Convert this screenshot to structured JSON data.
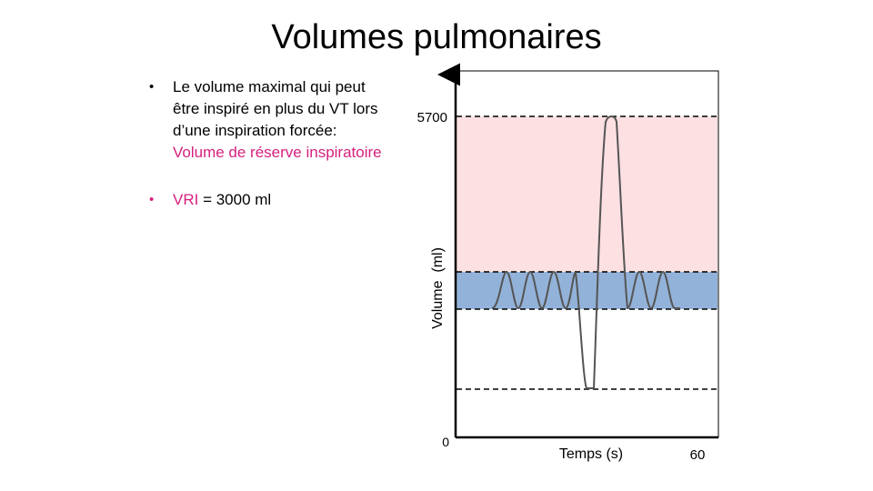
{
  "title": "Volumes pulmonaires",
  "bullets": [
    {
      "text": "Le volume maximal qui peut être inspiré en plus du VT lors d’une inspiration forcée: ",
      "highlight": "Volume de réserve inspiratoire"
    },
    {
      "highlight": "VRI",
      "text": " = 3000 ml"
    }
  ],
  "chart_data": {
    "type": "line",
    "xlabel": "Temps (s)",
    "ylabel": "Volume  (ml)",
    "x_ticks": [
      "60"
    ],
    "y_ticks": [
      "0",
      "5700"
    ],
    "xlim": [
      0,
      60
    ],
    "ylim": [
      0,
      5700
    ],
    "colors": {
      "inspiratory_reserve_band": "#fde0e2",
      "tidal_band": "#93b2d9",
      "trace": "#555555",
      "axis": "#000000"
    }
  }
}
